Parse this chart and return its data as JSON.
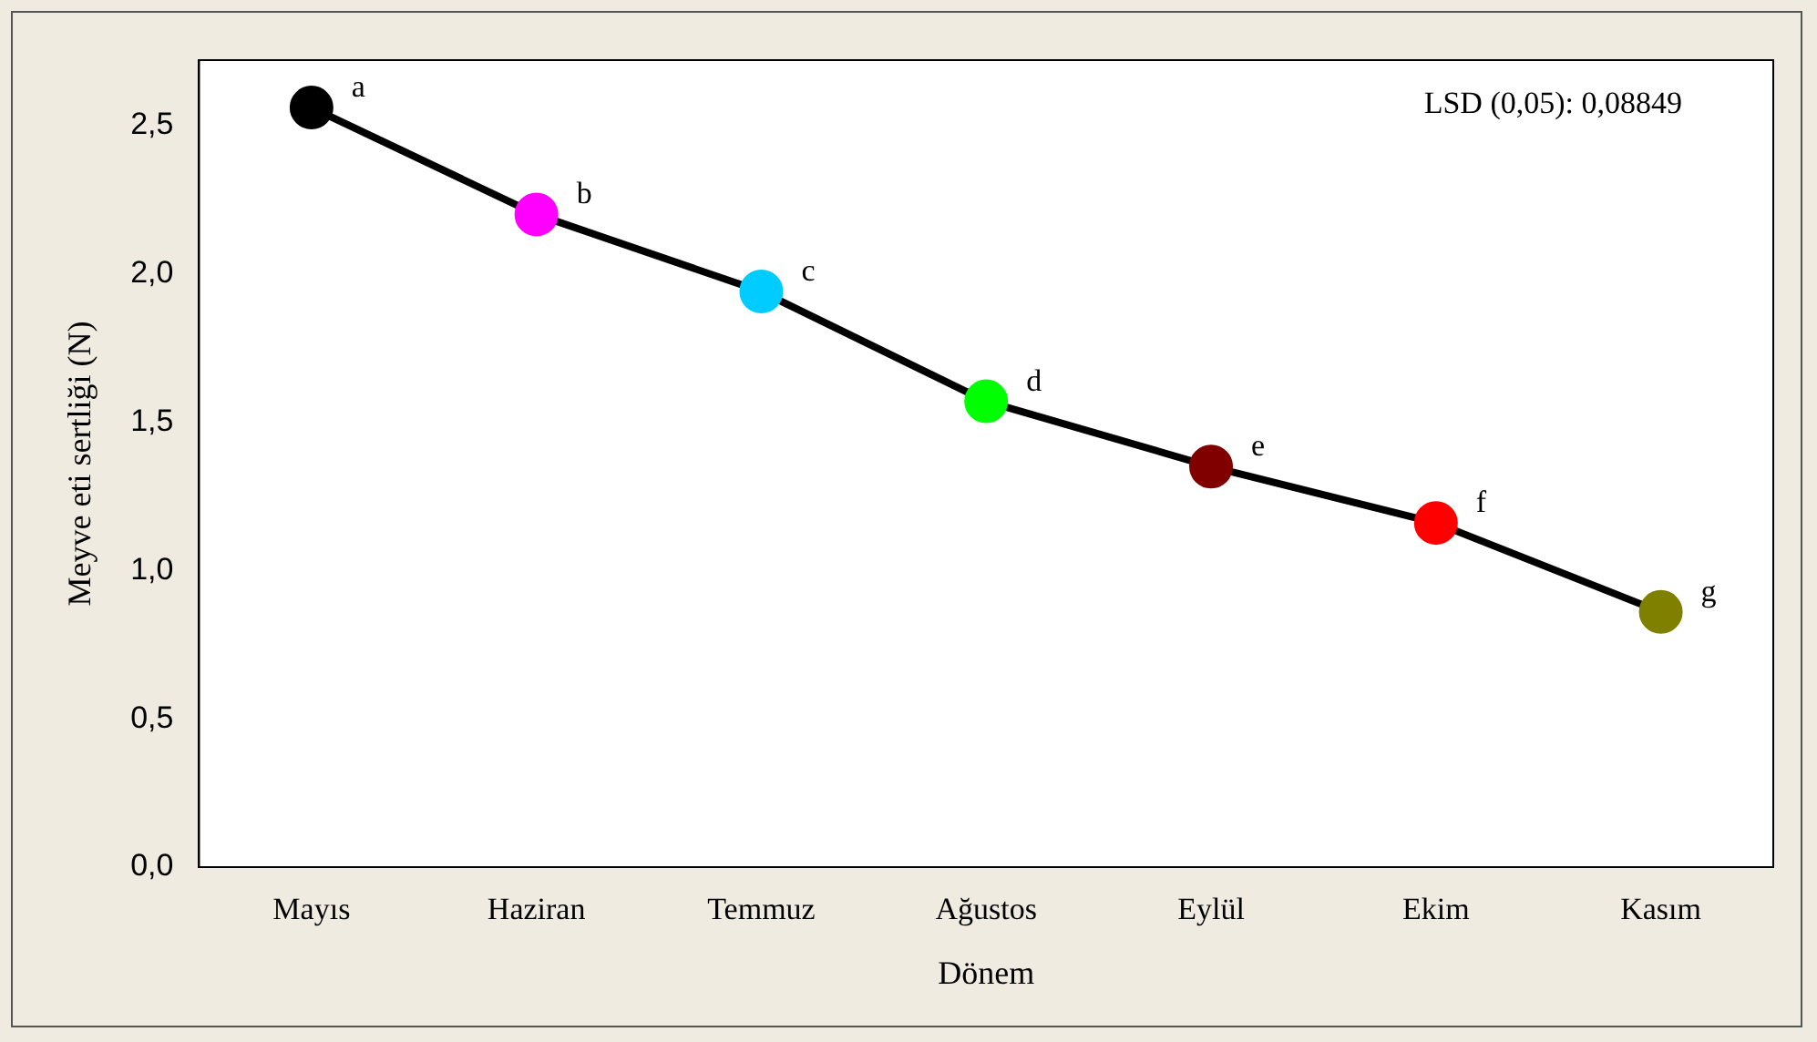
{
  "chart_data": {
    "type": "line",
    "xlabel": "Dönem",
    "ylabel": "Meyve eti sertliği (N)",
    "categories": [
      "Mayıs",
      "Haziran",
      "Temmuz",
      "Ağustos",
      "Eylül",
      "Ekim",
      "Kasım"
    ],
    "series": [
      {
        "color": "#000000",
        "colors": [
          "#000000",
          "#ff00ff",
          "#00ccff",
          "#00ff00",
          "#800000",
          "#ff0000",
          "#808000"
        ],
        "values": [
          2.56,
          2.2,
          1.94,
          1.57,
          1.35,
          1.16,
          0.86
        ]
      }
    ],
    "ylim": [
      0,
      2.72
    ],
    "yticks": [
      {
        "value": 0,
        "label": "0,0"
      },
      {
        "value": 0.5,
        "label": "0,5"
      },
      {
        "value": 1,
        "label": "1,0"
      },
      {
        "value": 1.5,
        "label": "1,5"
      },
      {
        "value": 2,
        "label": "2,0"
      },
      {
        "value": 2.5,
        "label": "2,5"
      }
    ],
    "grid": false,
    "legend": false,
    "marker": "circle",
    "line_style": "solid",
    "annotations": [
      {
        "text": "a",
        "x": "Mayıs",
        "y": 2.56
      },
      {
        "text": "b",
        "x": "Haziran",
        "y": 2.2
      },
      {
        "text": "c",
        "x": "Temmuz",
        "y": 1.94
      },
      {
        "text": "d",
        "x": "Ağustos",
        "y": 1.57
      },
      {
        "text": "e",
        "x": "Eylül",
        "y": 1.35
      },
      {
        "text": "f",
        "x": "Ekim",
        "y": 1.16
      },
      {
        "text": "g",
        "x": "Kasım",
        "y": 0.86
      },
      "LSD (0,05): 0,08849"
    ]
  }
}
